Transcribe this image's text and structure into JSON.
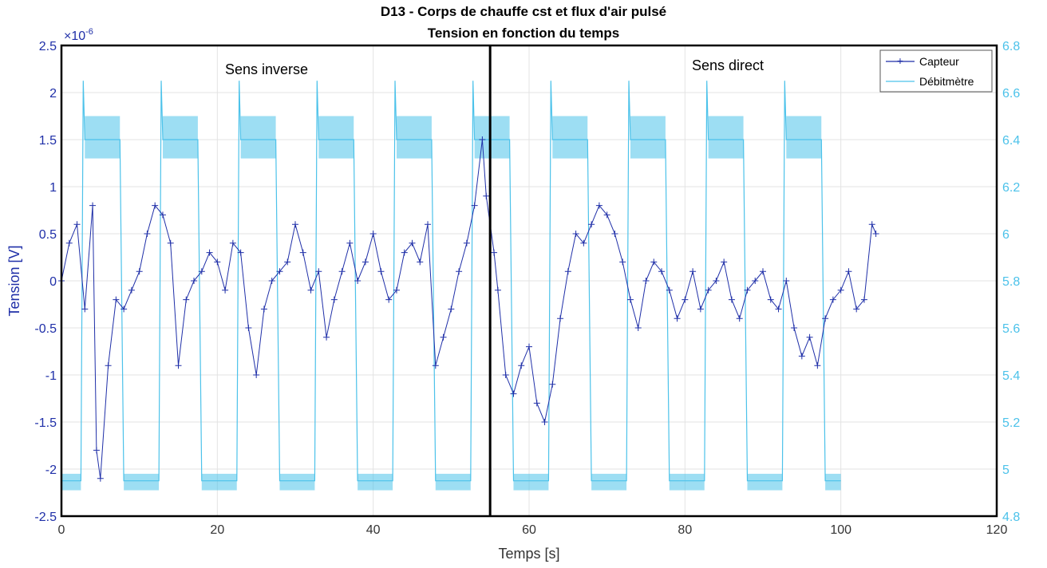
{
  "chart_data": {
    "type": "line",
    "title": "D13 - Corps de chauffe cst et flux d'air pulsé",
    "subtitle": "Tension en fonction du temps",
    "xlabel": "Temps [s]",
    "ylabel": "Tension [V]",
    "y_exponent_label": "×10",
    "y_exponent_power": "-6",
    "xlim": [
      0,
      120
    ],
    "ylim_left": [
      -2.5e-06,
      2.5e-06
    ],
    "ylim_right": [
      4.8,
      6.8
    ],
    "x_ticks": [
      "0",
      "20",
      "40",
      "60",
      "80",
      "100",
      "120"
    ],
    "y_ticks_left": [
      "-2.5",
      "-2",
      "-1.5",
      "-1",
      "-0.5",
      "0",
      "0.5",
      "1",
      "1.5",
      "2",
      "2.5"
    ],
    "y_ticks_right": [
      "4.8",
      "5",
      "5.2",
      "5.4",
      "5.6",
      "5.8",
      "6",
      "6.2",
      "6.4",
      "6.6",
      "6.8"
    ],
    "grid": true,
    "legend_position": "top-right",
    "annotations": {
      "left_region": "Sens inverse",
      "right_region": "Sens direct"
    },
    "divider_x": 55,
    "series": [
      {
        "name": "Capteur",
        "axis": "left",
        "color": "#1f2fa8",
        "marker": "+",
        "x": [
          0,
          1,
          2,
          3,
          4,
          4.5,
          5,
          6,
          7,
          8,
          9,
          10,
          11,
          12,
          13,
          14,
          15,
          16,
          17,
          18,
          19,
          20,
          21,
          22,
          23,
          24,
          25,
          26,
          27,
          28,
          29,
          30,
          31,
          32,
          33,
          34,
          35,
          36,
          37,
          38,
          39,
          40,
          41,
          42,
          43,
          44,
          45,
          46,
          47,
          48,
          49,
          50,
          51,
          52,
          53,
          54,
          54.5,
          55.5,
          56,
          57,
          58,
          59,
          60,
          61,
          62,
          63,
          64,
          65,
          66,
          67,
          68,
          69,
          70,
          71,
          72,
          73,
          74,
          75,
          76,
          77,
          78,
          79,
          80,
          81,
          82,
          83,
          84,
          85,
          86,
          87,
          88,
          89,
          90,
          91,
          92,
          93,
          94,
          95,
          96,
          97,
          98,
          99,
          100,
          101,
          102,
          103,
          104,
          104.5
        ],
        "values": [
          0.0,
          4e-07,
          6e-07,
          -3e-07,
          8e-07,
          -1.8e-06,
          -2.1e-06,
          -9e-07,
          -2e-07,
          -3e-07,
          -1e-07,
          1e-07,
          5e-07,
          8e-07,
          7e-07,
          4e-07,
          -9e-07,
          -2e-07,
          0.0,
          1e-07,
          3e-07,
          2e-07,
          -1e-07,
          4e-07,
          3e-07,
          -5e-07,
          -1e-06,
          -3e-07,
          0.0,
          1e-07,
          2e-07,
          6e-07,
          3e-07,
          -1e-07,
          1e-07,
          -6e-07,
          -2e-07,
          1e-07,
          4e-07,
          0.0,
          2e-07,
          5e-07,
          1e-07,
          -2e-07,
          -1e-07,
          3e-07,
          4e-07,
          2e-07,
          6e-07,
          -9e-07,
          -6e-07,
          -3e-07,
          1e-07,
          4e-07,
          8e-07,
          1.5e-06,
          9e-07,
          3e-07,
          -1e-07,
          -1e-06,
          -1.2e-06,
          -9e-07,
          -7e-07,
          -1.3e-06,
          -1.5e-06,
          -1.1e-06,
          -4e-07,
          1e-07,
          5e-07,
          4e-07,
          6e-07,
          8e-07,
          7e-07,
          5e-07,
          2e-07,
          -2e-07,
          -5e-07,
          0.0,
          2e-07,
          1e-07,
          -1e-07,
          -4e-07,
          -2e-07,
          1e-07,
          -3e-07,
          -1e-07,
          0.0,
          2e-07,
          -2e-07,
          -4e-07,
          -1e-07,
          0.0,
          1e-07,
          -2e-07,
          -3e-07,
          0.0,
          -5e-07,
          -8e-07,
          -6e-07,
          -9e-07,
          -4e-07,
          -2e-07,
          -1e-07,
          1e-07,
          -3e-07,
          -2e-07,
          6e-07,
          5e-07
        ]
      },
      {
        "name": "Débitmètre",
        "axis": "right",
        "color": "#4cc2ea",
        "x": [
          0,
          2.5,
          2.8,
          3.0,
          7.5,
          8.0,
          12.5,
          12.8,
          13.0,
          17.5,
          18.0,
          22.5,
          22.8,
          23.0,
          27.5,
          28.0,
          32.5,
          32.8,
          33.0,
          37.5,
          38.0,
          42.5,
          42.8,
          43.0,
          47.5,
          48.0,
          52.5,
          52.8,
          53.0,
          55.0,
          57.5,
          58.0,
          62.5,
          62.8,
          63.0,
          67.5,
          68.0,
          72.5,
          72.8,
          73.0,
          77.5,
          78.0,
          82.5,
          82.8,
          83.0,
          87.5,
          88.0,
          92.5,
          92.8,
          93.0,
          97.5,
          98.0,
          100
        ],
        "values": [
          4.95,
          4.95,
          6.65,
          6.4,
          6.4,
          4.95,
          4.95,
          6.65,
          6.4,
          6.4,
          4.95,
          4.95,
          6.65,
          6.4,
          6.4,
          4.95,
          4.95,
          6.65,
          6.4,
          6.4,
          4.95,
          4.95,
          6.65,
          6.4,
          6.4,
          4.95,
          4.95,
          6.65,
          6.4,
          6.4,
          6.4,
          4.95,
          4.95,
          6.65,
          6.4,
          6.4,
          4.95,
          4.95,
          6.65,
          6.4,
          6.4,
          4.95,
          4.95,
          6.65,
          6.4,
          6.4,
          4.95,
          4.95,
          6.65,
          6.4,
          6.4,
          4.95,
          4.95
        ]
      }
    ]
  }
}
